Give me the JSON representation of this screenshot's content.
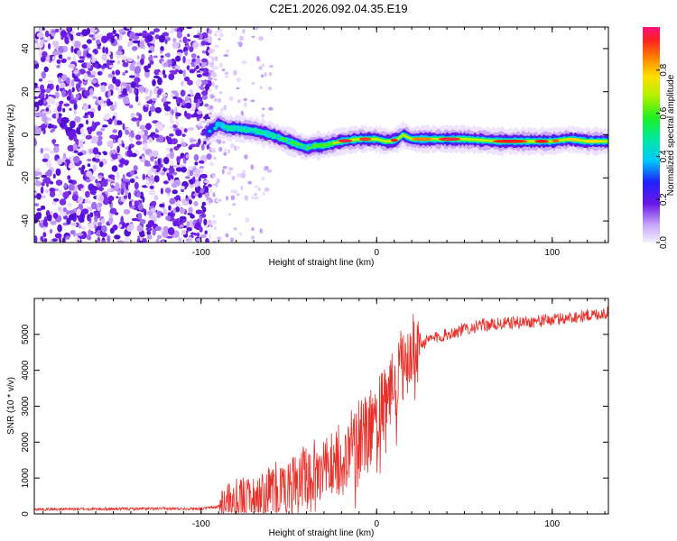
{
  "title": "C2E1.2026.092.04.35.E19",
  "chart_data": [
    {
      "type": "heatmap",
      "name": "spectrogram",
      "xlabel": "Height of straight line (km)",
      "ylabel": "Frequency (Hz)",
      "xlim": [
        -195,
        132
      ],
      "ylim": [
        -50,
        50
      ],
      "xticks": [
        -100,
        0,
        100
      ],
      "xtick_labels": [
        "-100",
        "0",
        "100"
      ],
      "yticks": [
        -40,
        -20,
        0,
        20,
        40
      ],
      "ytick_labels": [
        "-40",
        "-20",
        "0",
        "20",
        "40"
      ],
      "noise_region_x": [
        -195,
        -95
      ],
      "noise_fade_x": [
        -95,
        -60
      ],
      "signal_trace": {
        "x": [
          -97,
          -93,
          -90,
          -85,
          -80,
          -70,
          -60,
          -50,
          -40,
          -35,
          -30,
          -25,
          -20,
          -10,
          0,
          5,
          8,
          12,
          15,
          20,
          30,
          50,
          70,
          80,
          90,
          100,
          110,
          120,
          132
        ],
        "freq": [
          1,
          3,
          5,
          3,
          3,
          2,
          0,
          -3,
          -6,
          -5,
          -5,
          -4,
          -3,
          -2,
          -2,
          -3,
          -3,
          -2,
          0,
          -2,
          -2,
          -2,
          -3,
          -3,
          -3,
          -3,
          -2,
          -3,
          -3
        ]
      },
      "colorbar": {
        "label": "Normalized spectral amplitude",
        "range": [
          0,
          1
        ],
        "ticks": [
          0.0,
          0.2,
          0.4,
          0.6,
          0.8
        ],
        "tick_labels": [
          "0.0",
          "0.2",
          "0.4",
          "0.6",
          "0.8"
        ]
      }
    },
    {
      "type": "line",
      "name": "snr",
      "xlabel": "Height of straight line (km)",
      "ylabel": "SNR (10 * v/v)",
      "xlim": [
        -195,
        132
      ],
      "ylim": [
        0,
        6000
      ],
      "xticks": [
        -100,
        0,
        100
      ],
      "xtick_labels": [
        "-100",
        "0",
        "100"
      ],
      "yticks": [
        0,
        1000,
        2000,
        3000,
        4000,
        5000
      ],
      "ytick_labels": [
        "0",
        "1000",
        "2000",
        "3000",
        "4000",
        "5000"
      ],
      "color": "#e8302a",
      "series": [
        {
          "name": "SNR envelope",
          "x": [
            -195,
            -150,
            -100,
            -90,
            -85,
            -80,
            -70,
            -60,
            -50,
            -40,
            -30,
            -20,
            -15,
            -10,
            -5,
            0,
            5,
            10,
            15,
            20,
            25,
            30,
            40,
            50,
            60,
            80,
            100,
            115,
            132
          ],
          "y": [
            130,
            140,
            150,
            200,
            280,
            420,
            550,
            620,
            800,
            1050,
            1300,
            1550,
            1700,
            2000,
            2300,
            2600,
            3100,
            3600,
            4200,
            4500,
            4700,
            4850,
            5000,
            5150,
            5250,
            5330,
            5400,
            5500,
            5600
          ]
        }
      ]
    }
  ]
}
